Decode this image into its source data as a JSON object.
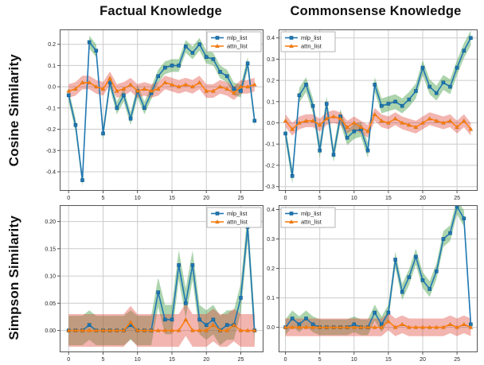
{
  "titles": {
    "factual": "Factual Knowledge",
    "commonsense": "Commonsense Knowledge",
    "cosine_row": "Cosine Similarity",
    "simpson_row": "Simpson Similarity"
  },
  "legend_labels": [
    "mlp_list",
    "attn_list"
  ],
  "colors": {
    "mlp_line": "#1f77b4",
    "mlp_edge": "#125a87",
    "attn_line": "#ff7f0e",
    "attn_edge": "#c66a10",
    "mlp_band": "rgba(70,160,73,0.45)",
    "attn_band": "rgba(222,70,58,0.40)",
    "grid": "#cccccc",
    "spine": "#555555",
    "tick_text": "#222222"
  },
  "x_values": [
    0,
    1,
    2,
    3,
    4,
    5,
    6,
    7,
    8,
    9,
    10,
    11,
    12,
    13,
    14,
    15,
    16,
    17,
    18,
    19,
    20,
    21,
    22,
    23,
    24,
    25,
    26,
    27
  ],
  "chart_data": [
    {
      "id": "cosine-factual",
      "type": "line",
      "title": "Factual Knowledge",
      "ylabel": "Cosine Similarity",
      "xlim": [
        -1.3,
        28.3
      ],
      "ylim": [
        -0.49,
        0.27
      ],
      "xticks": [
        0,
        5,
        10,
        15,
        20,
        25
      ],
      "xtick_labels": [
        "0",
        "5",
        "10",
        "15",
        "20",
        "25"
      ],
      "ytick_values": [
        0.2,
        0.1,
        0.0,
        -0.1,
        -0.2,
        -0.3,
        -0.4
      ],
      "ytick_labels": [
        "0.2",
        "0.1",
        "0.0",
        "-0.1",
        "-0.2",
        "-0.3",
        "-0.4"
      ],
      "legend": "upper-right",
      "grid": true,
      "series": [
        {
          "name": "mlp_list",
          "marker": "square",
          "color": "#1f77b4",
          "edge": "#125a87",
          "band_color": "rgba(70,160,73,0.45)",
          "band": 0.03,
          "values": [
            -0.04,
            -0.18,
            -0.44,
            0.21,
            0.17,
            -0.22,
            0.02,
            -0.1,
            -0.04,
            -0.15,
            -0.02,
            -0.1,
            -0.03,
            0.05,
            0.09,
            0.1,
            0.1,
            0.19,
            0.16,
            0.2,
            0.14,
            0.13,
            0.07,
            0.05,
            -0.01,
            -0.02,
            0.11,
            -0.16
          ]
        },
        {
          "name": "attn_list",
          "marker": "triangle",
          "color": "#ff7f0e",
          "edge": "#c66a10",
          "band_color": "rgba(222,70,58,0.40)",
          "band": 0.032,
          "values": [
            -0.02,
            -0.01,
            0.02,
            0.02,
            0.0,
            -0.01,
            0.04,
            -0.02,
            -0.01,
            0.01,
            -0.02,
            -0.01,
            -0.02,
            -0.01,
            0.02,
            0.01,
            0.0,
            0.01,
            0.0,
            0.02,
            -0.02,
            -0.02,
            0.0,
            -0.01,
            -0.03,
            0.0,
            0.0,
            0.01
          ]
        }
      ]
    },
    {
      "id": "cosine-commonsense",
      "type": "line",
      "title": "Commonsense Knowledge",
      "ylabel": "Cosine Similarity",
      "xlim": [
        -1.0,
        28.0
      ],
      "ylim": [
        -0.32,
        0.44
      ],
      "xticks": [
        0,
        5,
        10,
        15,
        20,
        25
      ],
      "xtick_labels": [
        "0",
        "5",
        "10",
        "15",
        "20",
        "25"
      ],
      "ytick_values": [
        0.4,
        0.3,
        0.2,
        0.1,
        0.0,
        -0.1,
        -0.2,
        -0.3
      ],
      "ytick_labels": [
        "0.4",
        "0.3",
        "0.2",
        "0.1",
        "0.0",
        "-0.1",
        "-0.2",
        "-0.3"
      ],
      "legend": "upper-left",
      "grid": true,
      "series": [
        {
          "name": "mlp_list",
          "marker": "square",
          "color": "#1f77b4",
          "edge": "#125a87",
          "band_color": "rgba(70,160,73,0.45)",
          "band": 0.035,
          "values": [
            -0.05,
            -0.25,
            0.13,
            0.18,
            0.08,
            -0.13,
            0.09,
            -0.15,
            0.03,
            -0.07,
            -0.04,
            -0.03,
            -0.13,
            0.18,
            0.08,
            0.09,
            0.1,
            0.08,
            0.11,
            0.15,
            0.26,
            0.17,
            0.14,
            0.19,
            0.17,
            0.26,
            0.34,
            0.4
          ]
        },
        {
          "name": "attn_list",
          "marker": "triangle",
          "color": "#ff7f0e",
          "edge": "#c66a10",
          "band_color": "rgba(222,70,58,0.40)",
          "band": 0.03,
          "values": [
            0.01,
            -0.03,
            0.0,
            0.01,
            0.01,
            -0.01,
            0.02,
            0.03,
            0.02,
            -0.02,
            0.0,
            -0.02,
            -0.04,
            0.04,
            0.01,
            0.0,
            0.02,
            0.0,
            -0.01,
            -0.02,
            0.0,
            0.02,
            0.01,
            0.0,
            0.01,
            -0.02,
            0.01,
            -0.03
          ]
        }
      ]
    },
    {
      "id": "simpson-factual",
      "type": "line",
      "title": "Factual Knowledge",
      "ylabel": "Simpson Similarity",
      "xlim": [
        -1.3,
        28.3
      ],
      "ylim": [
        -0.04,
        0.23
      ],
      "xticks": [
        0,
        5,
        10,
        15,
        20,
        25
      ],
      "xtick_labels": [
        "0",
        "5",
        "10",
        "15",
        "20",
        "25"
      ],
      "ytick_values": [
        0.2,
        0.15,
        0.1,
        0.05,
        0.0
      ],
      "ytick_labels": [
        "0.20",
        "0.15",
        "0.10",
        "0.05",
        "0.00"
      ],
      "legend": "upper-right",
      "grid": true,
      "series": [
        {
          "name": "mlp_list",
          "marker": "square",
          "color": "#1f77b4",
          "edge": "#125a87",
          "band_color": "rgba(70,160,73,0.45)",
          "band": 0.027,
          "values": [
            0.0,
            0.0,
            0.0,
            0.01,
            0.0,
            0.0,
            0.0,
            0.0,
            0.0,
            0.01,
            0.0,
            0.0,
            0.0,
            0.07,
            0.02,
            0.02,
            0.12,
            0.05,
            0.12,
            0.02,
            0.01,
            0.02,
            0.0,
            0.01,
            0.01,
            0.06,
            0.19,
            0.0
          ]
        },
        {
          "name": "attn_list",
          "marker": "triangle",
          "color": "#ff7f0e",
          "edge": "#c66a10",
          "band_color": "rgba(222,70,58,0.40)",
          "band": 0.03,
          "values": [
            0.0,
            0.0,
            0.0,
            0.0,
            0.0,
            0.0,
            0.0,
            0.0,
            0.0,
            0.015,
            0.0,
            0.0,
            0.0,
            0.0,
            0.0,
            0.0,
            0.0,
            0.02,
            0.0,
            0.0,
            0.0,
            0.01,
            0.0,
            0.0,
            0.01,
            0.0,
            0.0,
            0.0
          ]
        }
      ]
    },
    {
      "id": "simpson-commonsense",
      "type": "line",
      "title": "Commonsense Knowledge",
      "ylabel": "Simpson Similarity",
      "xlim": [
        -1.0,
        28.0
      ],
      "ylim": [
        -0.085,
        0.415
      ],
      "xticks": [
        0,
        5,
        10,
        15,
        20,
        25
      ],
      "xtick_labels": [
        "0",
        "5",
        "10",
        "15",
        "20",
        "25"
      ],
      "ytick_values": [
        0.4,
        0.3,
        0.2,
        0.1,
        0.0
      ],
      "ytick_labels": [
        "0.4",
        "0.3",
        "0.2",
        "0.1",
        "0.0"
      ],
      "legend": "upper-left",
      "grid": true,
      "series": [
        {
          "name": "mlp_list",
          "marker": "square",
          "color": "#1f77b4",
          "edge": "#125a87",
          "band_color": "rgba(70,160,73,0.45)",
          "band": 0.027,
          "values": [
            0.0,
            0.03,
            0.01,
            0.03,
            0.01,
            0.0,
            0.0,
            0.0,
            0.0,
            0.0,
            0.01,
            0.0,
            0.0,
            0.05,
            0.01,
            0.05,
            0.23,
            0.12,
            0.17,
            0.24,
            0.16,
            0.13,
            0.19,
            0.3,
            0.32,
            0.41,
            0.37,
            0.01
          ]
        },
        {
          "name": "attn_list",
          "marker": "triangle",
          "color": "#ff7f0e",
          "edge": "#c66a10",
          "band_color": "rgba(222,70,58,0.40)",
          "band": 0.03,
          "values": [
            0.0,
            0.0,
            0.0,
            0.0,
            0.0,
            0.0,
            0.0,
            0.0,
            0.0,
            0.0,
            0.0,
            0.0,
            0.0,
            0.0,
            0.0,
            0.02,
            0.0,
            0.01,
            0.0,
            0.0,
            0.0,
            0.0,
            0.0,
            0.0,
            0.01,
            0.0,
            0.01,
            0.0
          ]
        }
      ]
    }
  ]
}
